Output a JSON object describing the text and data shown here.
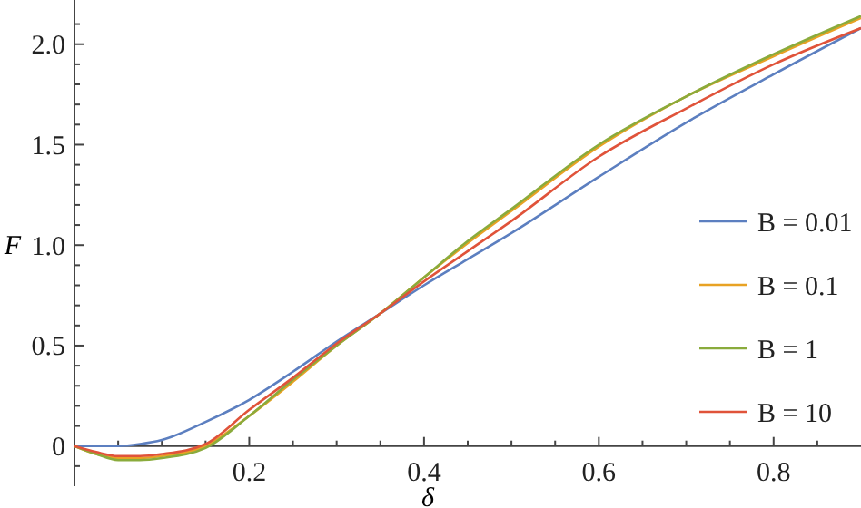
{
  "chart_data": {
    "type": "line",
    "xlabel": "δ",
    "ylabel": "F",
    "xlim": [
      0,
      0.9
    ],
    "ylim": [
      -0.2,
      2.22
    ],
    "xticks": [
      {
        "value": 0.05,
        "label": null
      },
      {
        "value": 0.1,
        "label": null
      },
      {
        "value": 0.15,
        "label": null
      },
      0.2,
      {
        "value": 0.25,
        "label": null
      },
      {
        "value": 0.3,
        "label": null
      },
      {
        "value": 0.35,
        "label": null
      },
      0.4,
      {
        "value": 0.45,
        "label": null
      },
      {
        "value": 0.5,
        "label": null
      },
      {
        "value": 0.55,
        "label": null
      },
      0.6,
      {
        "value": 0.65,
        "label": null
      },
      {
        "value": 0.7,
        "label": null
      },
      {
        "value": 0.75,
        "label": null
      },
      0.8,
      {
        "value": 0.85,
        "label": null
      }
    ],
    "yticks": [
      {
        "value": -0.1,
        "label": null
      },
      0,
      {
        "value": 0.1,
        "label": null
      },
      {
        "value": 0.2,
        "label": null
      },
      {
        "value": 0.3,
        "label": null
      },
      {
        "value": 0.4,
        "label": null
      },
      {
        "value": 0.5,
        "label": "0.5"
      },
      {
        "value": 0.6,
        "label": null
      },
      {
        "value": 0.7,
        "label": null
      },
      {
        "value": 0.8,
        "label": null
      },
      {
        "value": 0.9,
        "label": null
      },
      {
        "value": 1,
        "label": "1.0"
      },
      {
        "value": 1.1,
        "label": null
      },
      {
        "value": 1.2,
        "label": null
      },
      {
        "value": 1.3,
        "label": null
      },
      {
        "value": 1.4,
        "label": null
      },
      {
        "value": 1.5,
        "label": "1.5"
      },
      {
        "value": 1.6,
        "label": null
      },
      {
        "value": 1.7,
        "label": null
      },
      {
        "value": 1.8,
        "label": null
      },
      {
        "value": 1.9,
        "label": null
      },
      {
        "value": 2,
        "label": "2.0"
      },
      {
        "value": 2.1,
        "label": null
      }
    ],
    "legend": "right",
    "marker": "none",
    "line_style": "solid",
    "grid": false,
    "x": [
      0,
      0.025,
      0.05,
      0.075,
      0.1,
      0.15,
      0.2,
      0.25,
      0.3,
      0.35,
      0.4,
      0.45,
      0.5,
      0.6,
      0.7,
      0.8,
      0.9
    ],
    "series": [
      {
        "name": "B = 0.01",
        "color": "#5c7fc0",
        "values": [
          0,
          0,
          0,
          0.01,
          0.03,
          0.12,
          0.23,
          0.37,
          0.52,
          0.66,
          0.8,
          0.93,
          1.06,
          1.34,
          1.61,
          1.85,
          2.08
        ]
      },
      {
        "name": "B = 0.1",
        "color": "#e8a224",
        "values": [
          0,
          -0.04,
          -0.06,
          -0.06,
          -0.05,
          0,
          0.15,
          0.32,
          0.5,
          0.66,
          0.84,
          1.01,
          1.17,
          1.49,
          1.74,
          1.94,
          2.13
        ]
      },
      {
        "name": "B = 1",
        "color": "#8aab3c",
        "values": [
          0,
          -0.04,
          -0.07,
          -0.07,
          -0.06,
          -0.01,
          0.15,
          0.33,
          0.5,
          0.66,
          0.84,
          1.02,
          1.18,
          1.5,
          1.74,
          1.95,
          2.14
        ]
      },
      {
        "name": "B = 10",
        "color": "#e0533a",
        "values": [
          0,
          -0.03,
          -0.05,
          -0.05,
          -0.04,
          0.01,
          0.18,
          0.34,
          0.51,
          0.66,
          0.82,
          0.97,
          1.12,
          1.44,
          1.68,
          1.9,
          2.08
        ]
      }
    ]
  }
}
